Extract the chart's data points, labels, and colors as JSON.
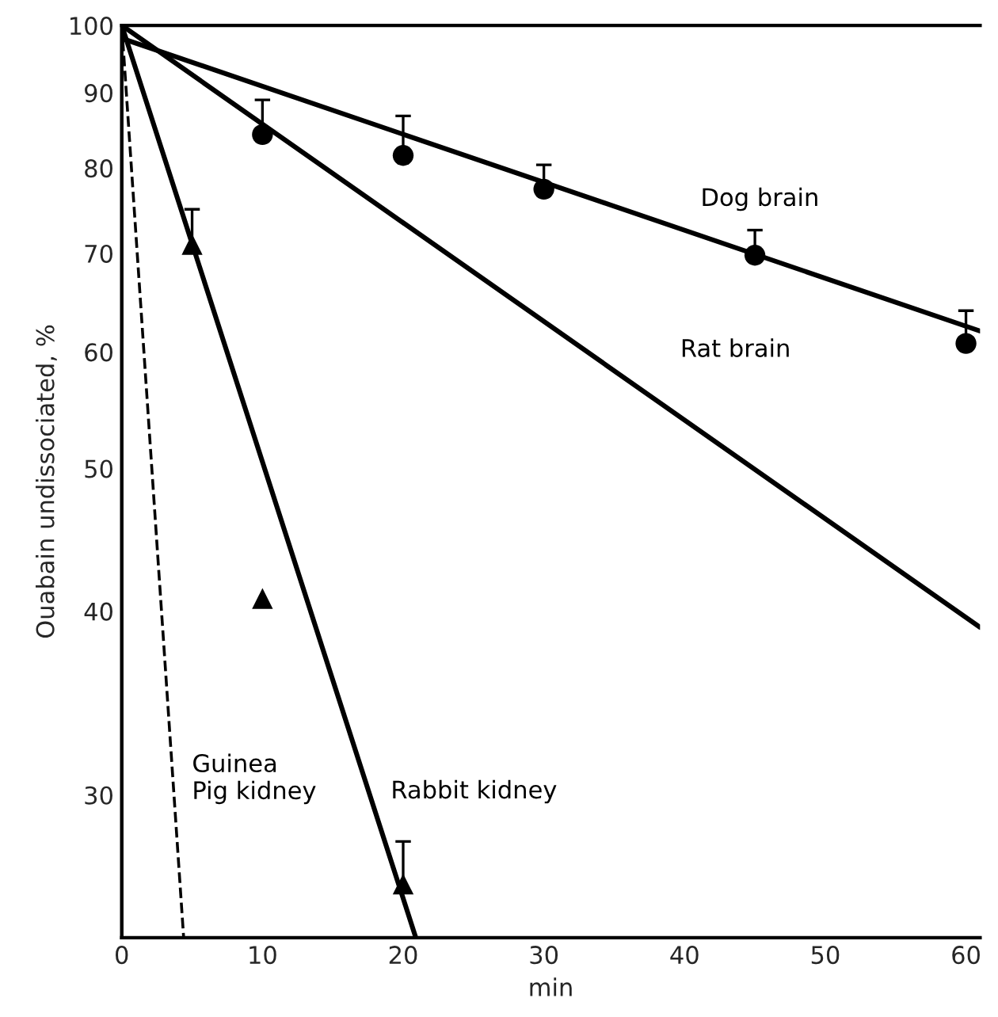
{
  "chart_data": {
    "type": "line",
    "xlabel": "min",
    "ylabel": "Ouabain undissociated, %",
    "log": "y",
    "xlim": [
      0,
      61
    ],
    "ylim": [
      24,
      100
    ],
    "xticks": [
      0,
      10,
      20,
      30,
      40,
      50,
      60
    ],
    "yticks": [
      30,
      40,
      50,
      60,
      70,
      80,
      90,
      100
    ],
    "grid": false,
    "legend": false,
    "series": [
      {
        "name": "Dog brain",
        "color": "#000000",
        "x": [
          0,
          61
        ],
        "values": [
          98,
          62
        ]
      },
      {
        "type": "scatter",
        "marker": "circle",
        "color": "#000000",
        "x": [
          10,
          20,
          30,
          45,
          60
        ],
        "values": [
          84.3,
          81.6,
          77.4,
          69.8,
          60.8
        ],
        "errors": [
          [
            84.3,
            89
          ],
          [
            81.6,
            86.8
          ],
          [
            77.4,
            80.4
          ],
          [
            69.8,
            72.6
          ],
          [
            60.8,
            64
          ]
        ]
      },
      {
        "name": "Rat brain",
        "color": "#000000",
        "x": [
          0,
          61
        ],
        "values": [
          100,
          39
        ]
      },
      {
        "name": "Rabbit kidney",
        "color": "#000000",
        "x": [
          0,
          20.9
        ],
        "values": [
          100,
          24
        ]
      },
      {
        "type": "scatter",
        "marker": "triangle",
        "color": "#000000",
        "x": [
          5,
          10,
          20
        ],
        "values": [
          71,
          40.8,
          26.1
        ],
        "errors": [
          [
            71,
            75
          ],
          null,
          [
            26.1,
            27.9
          ]
        ]
      },
      {
        "name": "Guinea\nPig kidney",
        "line_style": "dashed",
        "color": "#000000",
        "x": [
          0,
          4.4
        ],
        "values": [
          100,
          24
        ]
      }
    ]
  }
}
